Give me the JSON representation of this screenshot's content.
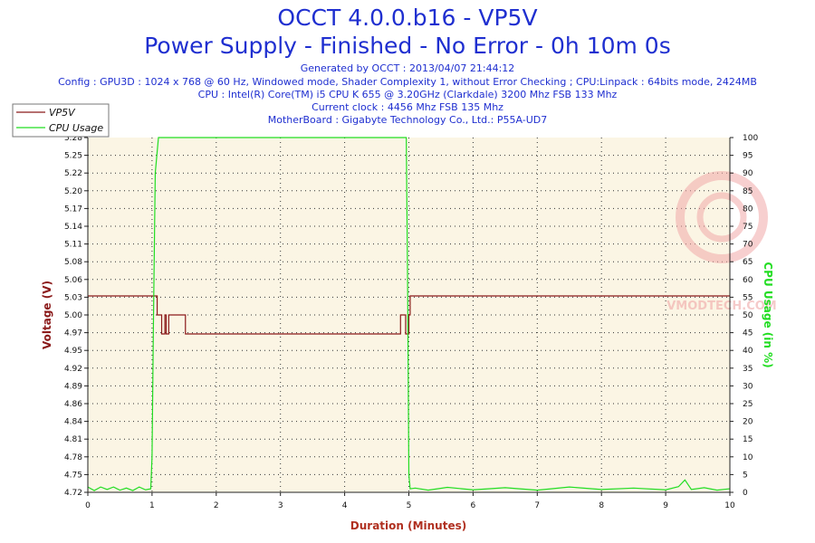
{
  "header": {
    "title": "OCCT 4.0.0.b16 - VP5V",
    "subtitle": "Power Supply - Finished - No Error - 0h 10m 0s",
    "generated": "Generated by OCCT : 2013/04/07 21:44:12",
    "config": "Config : GPU3D : 1024 x 768 @ 60 Hz, Windowed mode, Shader Complexity 1, without Error Checking ; CPU:Linpack : 64bits mode, 2424MB",
    "cpu": "CPU : Intel(R) Core(TM) i5 CPU K 655 @ 3.20GHz (Clarkdale) 3200 Mhz FSB 133 Mhz",
    "clock": "Current clock : 4456 Mhz FSB 135 Mhz",
    "motherboard": "MotherBoard : Gigabyte Technology Co., Ltd.: P55A-UD7"
  },
  "watermark": "VMODTECH.COM",
  "colors": {
    "plot_bg": "#fbf5e4",
    "voltage": "#8b1a1a",
    "cpu": "#22dd22",
    "title": "#1f2fd0",
    "xlabel": "#b03020"
  },
  "chart_data": {
    "type": "line",
    "xlabel": "Duration (Minutes)",
    "ylabel": "Voltage (V)",
    "y2label": "CPU Usage (in %)",
    "xlim": [
      0,
      10
    ],
    "ylim": [
      4.72,
      5.28
    ],
    "y2lim": [
      0,
      100
    ],
    "x_ticks": [
      "0",
      "1",
      "2",
      "3",
      "4",
      "5",
      "6",
      "7",
      "8",
      "9",
      "10"
    ],
    "y_ticks": [
      "4.72",
      "4.75",
      "4.78",
      "4.81",
      "4.84",
      "4.86",
      "4.89",
      "4.92",
      "4.95",
      "4.97",
      "5.00",
      "5.03",
      "5.06",
      "5.08",
      "5.11",
      "5.14",
      "5.17",
      "5.20",
      "5.22",
      "5.25",
      "5.28"
    ],
    "y2_ticks": [
      "0",
      "5",
      "10",
      "15",
      "20",
      "25",
      "30",
      "35",
      "40",
      "45",
      "50",
      "55",
      "60",
      "65",
      "70",
      "75",
      "80",
      "85",
      "90",
      "95",
      "100"
    ],
    "grid": true,
    "legend_position": "top-left",
    "series": [
      {
        "name": "VP5V",
        "axis": "left",
        "x": [
          0,
          1.05,
          1.08,
          1.12,
          1.15,
          1.18,
          1.2,
          1.22,
          1.24,
          1.26,
          1.5,
          1.52,
          4.85,
          4.87,
          4.93,
          4.95,
          4.98,
          5.0,
          5.02,
          10
        ],
        "y": [
          5.03,
          5.03,
          5.0,
          5.0,
          4.97,
          4.97,
          5.0,
          4.97,
          4.97,
          5.0,
          5.0,
          4.97,
          4.97,
          5.0,
          5.0,
          4.97,
          4.97,
          5.0,
          5.03,
          5.03
        ]
      },
      {
        "name": "CPU Usage",
        "axis": "right",
        "x": [
          0,
          0.1,
          0.2,
          0.3,
          0.4,
          0.5,
          0.6,
          0.7,
          0.8,
          0.9,
          0.98,
          1.0,
          1.02,
          1.05,
          1.1,
          2,
          3,
          4,
          4.9,
          4.96,
          4.98,
          5.0,
          5.02,
          5.1,
          5.3,
          5.6,
          6.0,
          6.5,
          7.0,
          7.5,
          8.0,
          8.5,
          9.0,
          9.2,
          9.3,
          9.4,
          9.6,
          9.8,
          10
        ],
        "y": [
          1.5,
          0.5,
          1.5,
          0.8,
          1.5,
          0.6,
          1.2,
          0.5,
          1.5,
          0.7,
          1.0,
          10,
          45,
          90,
          100,
          100,
          100,
          100,
          100,
          100,
          60,
          5,
          1,
          1.2,
          0.6,
          1.4,
          0.7,
          1.3,
          0.6,
          1.5,
          0.8,
          1.2,
          0.7,
          1.6,
          3.5,
          0.8,
          1.3,
          0.6,
          1.0
        ]
      }
    ]
  }
}
